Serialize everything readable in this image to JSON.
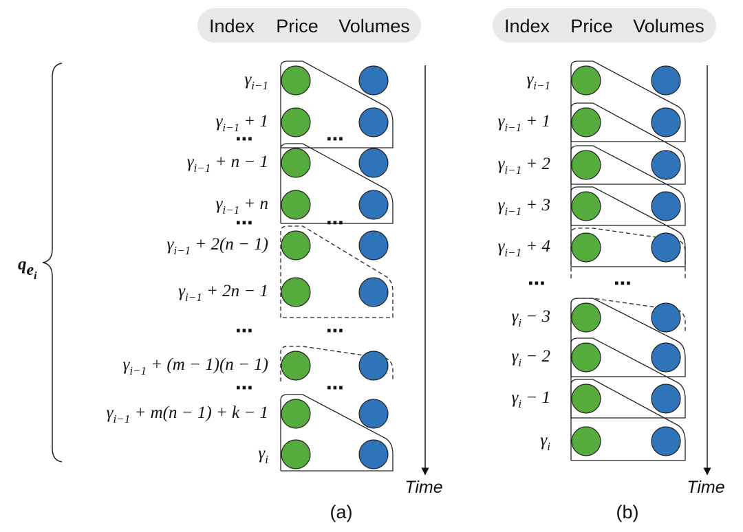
{
  "panels": [
    {
      "header": [
        "Index",
        "Price",
        "Volumes"
      ],
      "caption": "(a)",
      "axis_label": "Time",
      "gap": "⋯",
      "brace_label": {
        "base": "q",
        "sub": "e",
        "subsub": "i"
      },
      "rows": [
        {
          "sym": "γ",
          "sub": "i−1"
        },
        {
          "sym": "γ",
          "sub": "i−1",
          "expr": " + 1"
        },
        {
          "sym": "γ",
          "sub": "i−1",
          "expr": " + n − 1"
        },
        {
          "sym": "γ",
          "sub": "i−1",
          "expr": " + n"
        },
        {
          "sym": "γ",
          "sub": "i−1",
          "expr": " + 2(n − 1)"
        },
        {
          "sym": "γ",
          "sub": "i−1",
          "expr": " + 2n − 1"
        },
        {
          "sym": "γ",
          "sub": "i−1",
          "expr": " + (m − 1)(n − 1)"
        },
        {
          "sym": "γ",
          "sub": "i−1",
          "expr": " + m(n − 1) + k − 1"
        },
        {
          "sym": "γ",
          "sub": "i"
        }
      ]
    },
    {
      "header": [
        "Index",
        "Price",
        "Volumes"
      ],
      "caption": "(b)",
      "axis_label": "Time",
      "gap": "⋯",
      "rows": [
        {
          "sym": "γ",
          "sub": "i−1"
        },
        {
          "sym": "γ",
          "sub": "i−1",
          "expr": " + 1"
        },
        {
          "sym": "γ",
          "sub": "i−1",
          "expr": " + 2"
        },
        {
          "sym": "γ",
          "sub": "i−1",
          "expr": " + 3"
        },
        {
          "sym": "γ",
          "sub": "i−1",
          "expr": " + 4"
        },
        {
          "sym": "γ",
          "sub": "i",
          "expr": " − 3"
        },
        {
          "sym": "γ",
          "sub": "i",
          "expr": " − 2"
        },
        {
          "sym": "γ",
          "sub": "i",
          "expr": " − 1"
        },
        {
          "sym": "γ",
          "sub": "i"
        }
      ]
    }
  ]
}
